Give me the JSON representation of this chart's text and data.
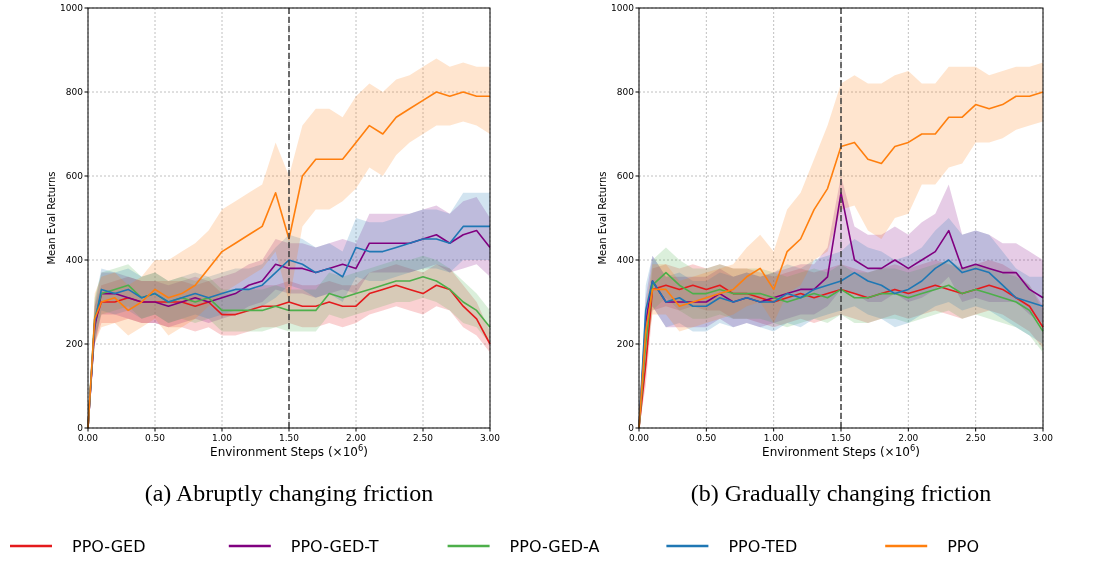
{
  "chart_data": [
    {
      "type": "line",
      "title": "(a) Abruptly changing friction",
      "xlabel": "Environment Steps (×10$^{6}$)",
      "ylabel": "Mean Eval Returns",
      "x": [
        0,
        0.05,
        0.1,
        0.2,
        0.3,
        0.4,
        0.5,
        0.6,
        0.7,
        0.8,
        0.9,
        1.0,
        1.1,
        1.2,
        1.3,
        1.4,
        1.5,
        1.6,
        1.7,
        1.8,
        1.9,
        2.0,
        2.1,
        2.2,
        2.3,
        2.4,
        2.5,
        2.6,
        2.7,
        2.8,
        2.9,
        3.0
      ],
      "xlim": [
        0,
        3
      ],
      "xticks": [
        {
          "value": 0,
          "label": "0.00"
        },
        {
          "value": 0.5,
          "label": "0.50"
        },
        {
          "value": 1,
          "label": "1.00"
        },
        {
          "value": 1.5,
          "label": "1.50"
        },
        {
          "value": 2,
          "label": "2.00"
        },
        {
          "value": 2.5,
          "label": "2.50"
        },
        {
          "value": 3,
          "label": "3.00"
        }
      ],
      "ylim": [
        0,
        1000
      ],
      "yticks": [
        0,
        200,
        400,
        600,
        800,
        1000
      ],
      "grid": true,
      "legend": "bottom",
      "line_style": "solid",
      "ref_lines": [
        {
          "axis": "x",
          "value": 1.5,
          "color": "#404040",
          "line_style": "dashed"
        }
      ],
      "series": [
        {
          "name": "PPO-GED",
          "color": "#e41a1c",
          "values": [
            0,
            250,
            300,
            300,
            310,
            300,
            300,
            300,
            300,
            290,
            300,
            270,
            270,
            280,
            290,
            290,
            300,
            290,
            290,
            300,
            290,
            290,
            320,
            330,
            340,
            330,
            320,
            340,
            330,
            290,
            260,
            200
          ],
          "lower": [
            0,
            200,
            250,
            250,
            260,
            250,
            250,
            240,
            240,
            230,
            240,
            220,
            220,
            230,
            240,
            240,
            250,
            240,
            240,
            250,
            240,
            250,
            270,
            280,
            290,
            280,
            270,
            290,
            280,
            240,
            220,
            180
          ],
          "upper": [
            0,
            290,
            340,
            350,
            360,
            350,
            350,
            350,
            350,
            340,
            350,
            320,
            320,
            330,
            340,
            340,
            350,
            340,
            340,
            350,
            340,
            340,
            370,
            380,
            390,
            380,
            370,
            390,
            380,
            340,
            300,
            230
          ]
        },
        {
          "name": "PPO-GED-T",
          "color": "#800080",
          "values": [
            0,
            240,
            320,
            320,
            310,
            300,
            300,
            290,
            300,
            310,
            300,
            310,
            320,
            340,
            350,
            390,
            380,
            380,
            370,
            380,
            390,
            380,
            440,
            440,
            440,
            440,
            450,
            460,
            440,
            460,
            470,
            430
          ],
          "lower": [
            0,
            200,
            270,
            270,
            260,
            250,
            250,
            240,
            250,
            260,
            250,
            260,
            270,
            290,
            300,
            330,
            320,
            320,
            310,
            320,
            330,
            320,
            370,
            370,
            370,
            370,
            380,
            390,
            370,
            380,
            390,
            360
          ],
          "upper": [
            0,
            290,
            370,
            370,
            360,
            350,
            350,
            340,
            350,
            360,
            350,
            360,
            370,
            390,
            400,
            450,
            440,
            440,
            430,
            440,
            450,
            440,
            510,
            510,
            510,
            510,
            520,
            530,
            510,
            540,
            550,
            500
          ]
        },
        {
          "name": "PPO-GED-A",
          "color": "#4daf4a",
          "values": [
            0,
            260,
            320,
            330,
            340,
            310,
            320,
            300,
            310,
            300,
            310,
            280,
            280,
            280,
            280,
            290,
            280,
            280,
            280,
            320,
            310,
            320,
            330,
            340,
            350,
            350,
            360,
            350,
            330,
            300,
            280,
            240
          ],
          "lower": [
            0,
            210,
            270,
            280,
            290,
            260,
            270,
            250,
            260,
            250,
            260,
            230,
            230,
            230,
            230,
            240,
            230,
            230,
            230,
            270,
            260,
            270,
            280,
            290,
            300,
            300,
            310,
            300,
            280,
            250,
            240,
            200
          ],
          "upper": [
            0,
            310,
            370,
            380,
            390,
            360,
            370,
            350,
            360,
            350,
            360,
            330,
            330,
            330,
            330,
            340,
            330,
            330,
            330,
            370,
            360,
            370,
            380,
            390,
            400,
            400,
            410,
            400,
            380,
            350,
            320,
            280
          ]
        },
        {
          "name": "PPO-TED",
          "color": "#1f77b4",
          "values": [
            0,
            250,
            330,
            320,
            330,
            310,
            320,
            300,
            310,
            320,
            310,
            320,
            330,
            330,
            340,
            370,
            400,
            390,
            370,
            380,
            360,
            430,
            420,
            420,
            430,
            440,
            450,
            450,
            440,
            480,
            480,
            480
          ],
          "lower": [
            0,
            200,
            280,
            270,
            280,
            260,
            270,
            250,
            260,
            270,
            260,
            270,
            280,
            280,
            290,
            310,
            340,
            330,
            310,
            320,
            300,
            360,
            350,
            350,
            360,
            370,
            380,
            380,
            370,
            400,
            400,
            400
          ],
          "upper": [
            0,
            300,
            380,
            370,
            380,
            360,
            370,
            350,
            360,
            370,
            360,
            370,
            380,
            380,
            390,
            430,
            460,
            450,
            430,
            440,
            420,
            500,
            490,
            490,
            500,
            510,
            520,
            520,
            510,
            560,
            560,
            560
          ]
        },
        {
          "name": "PPO",
          "color": "#ff7f0e",
          "values": [
            0,
            260,
            300,
            310,
            280,
            300,
            330,
            310,
            320,
            340,
            380,
            420,
            440,
            460,
            480,
            560,
            450,
            600,
            640,
            640,
            640,
            680,
            720,
            700,
            740,
            760,
            780,
            800,
            790,
            800,
            790,
            790
          ],
          "lower": [
            0,
            200,
            240,
            250,
            220,
            240,
            260,
            220,
            240,
            260,
            290,
            320,
            340,
            360,
            380,
            420,
            300,
            480,
            520,
            520,
            540,
            570,
            620,
            600,
            650,
            680,
            700,
            720,
            720,
            730,
            720,
            700
          ],
          "upper": [
            0,
            320,
            360,
            370,
            340,
            360,
            400,
            400,
            420,
            440,
            470,
            520,
            540,
            560,
            580,
            680,
            600,
            720,
            760,
            760,
            740,
            790,
            820,
            800,
            830,
            840,
            860,
            880,
            860,
            870,
            860,
            860
          ]
        }
      ]
    },
    {
      "type": "line",
      "title": "(b) Gradually changing friction",
      "xlabel": "Environment Steps (×10$^{6}$)",
      "ylabel": "Mean Eval Returns",
      "x": [
        0,
        0.05,
        0.1,
        0.2,
        0.3,
        0.4,
        0.5,
        0.6,
        0.7,
        0.8,
        0.9,
        1.0,
        1.1,
        1.2,
        1.3,
        1.4,
        1.5,
        1.6,
        1.7,
        1.8,
        1.9,
        2.0,
        2.1,
        2.2,
        2.3,
        2.4,
        2.5,
        2.6,
        2.7,
        2.8,
        2.9,
        3.0
      ],
      "xlim": [
        0,
        3
      ],
      "xticks": [
        {
          "value": 0,
          "label": "0.00"
        },
        {
          "value": 0.5,
          "label": "0.50"
        },
        {
          "value": 1,
          "label": "1.00"
        },
        {
          "value": 1.5,
          "label": "1.50"
        },
        {
          "value": 2,
          "label": "2.00"
        },
        {
          "value": 2.5,
          "label": "2.50"
        },
        {
          "value": 3,
          "label": "3.00"
        }
      ],
      "ylim": [
        0,
        1000
      ],
      "yticks": [
        0,
        200,
        400,
        600,
        800,
        1000
      ],
      "grid": true,
      "line_style": "solid",
      "ref_lines": [
        {
          "axis": "x",
          "value": 1.5,
          "color": "#404040",
          "line_style": "dashed"
        }
      ],
      "series": [
        {
          "color": "#e41a1c",
          "values": [
            0,
            150,
            330,
            340,
            330,
            340,
            330,
            340,
            320,
            320,
            310,
            300,
            310,
            320,
            310,
            320,
            330,
            320,
            310,
            320,
            330,
            320,
            330,
            340,
            330,
            320,
            330,
            340,
            330,
            310,
            290,
            240
          ],
          "lower": [
            0,
            100,
            280,
            290,
            280,
            290,
            280,
            280,
            260,
            260,
            250,
            240,
            250,
            260,
            250,
            260,
            270,
            260,
            250,
            260,
            270,
            260,
            270,
            280,
            270,
            260,
            270,
            280,
            270,
            250,
            230,
            190
          ],
          "upper": [
            0,
            200,
            380,
            390,
            380,
            390,
            380,
            390,
            380,
            380,
            370,
            360,
            370,
            380,
            370,
            380,
            390,
            380,
            370,
            380,
            390,
            380,
            390,
            400,
            390,
            380,
            390,
            400,
            390,
            370,
            340,
            290
          ]
        },
        {
          "color": "#800080",
          "values": [
            0,
            250,
            350,
            300,
            300,
            300,
            300,
            320,
            300,
            310,
            300,
            310,
            320,
            330,
            330,
            360,
            560,
            400,
            380,
            380,
            400,
            380,
            400,
            420,
            470,
            380,
            390,
            380,
            370,
            370,
            330,
            310
          ],
          "lower": [
            0,
            190,
            290,
            240,
            240,
            240,
            240,
            260,
            240,
            250,
            240,
            250,
            260,
            270,
            270,
            290,
            330,
            320,
            300,
            300,
            320,
            300,
            310,
            330,
            360,
            300,
            310,
            300,
            300,
            300,
            270,
            250
          ],
          "upper": [
            0,
            310,
            410,
            360,
            360,
            360,
            360,
            380,
            360,
            370,
            360,
            370,
            380,
            390,
            390,
            430,
            600,
            480,
            460,
            460,
            480,
            460,
            490,
            510,
            580,
            460,
            470,
            460,
            440,
            440,
            420,
            400
          ]
        },
        {
          "color": "#4daf4a",
          "values": [
            0,
            200,
            340,
            370,
            340,
            320,
            320,
            330,
            320,
            320,
            320,
            310,
            300,
            310,
            320,
            310,
            330,
            310,
            310,
            320,
            320,
            310,
            320,
            330,
            340,
            320,
            330,
            320,
            310,
            300,
            280,
            230
          ],
          "lower": [
            0,
            150,
            280,
            310,
            280,
            260,
            260,
            270,
            260,
            260,
            260,
            250,
            240,
            250,
            260,
            250,
            270,
            250,
            250,
            260,
            260,
            250,
            260,
            270,
            280,
            260,
            270,
            260,
            250,
            240,
            220,
            180
          ],
          "upper": [
            0,
            250,
            400,
            430,
            400,
            380,
            380,
            390,
            380,
            380,
            380,
            370,
            360,
            370,
            380,
            370,
            390,
            370,
            370,
            380,
            380,
            370,
            380,
            390,
            400,
            380,
            390,
            380,
            370,
            360,
            340,
            280
          ]
        },
        {
          "color": "#1f77b4",
          "values": [
            0,
            280,
            350,
            300,
            310,
            290,
            290,
            310,
            300,
            310,
            300,
            300,
            320,
            310,
            330,
            340,
            350,
            370,
            350,
            340,
            320,
            330,
            350,
            380,
            400,
            370,
            380,
            370,
            340,
            310,
            300,
            290
          ],
          "lower": [
            0,
            220,
            290,
            240,
            250,
            230,
            230,
            250,
            240,
            250,
            240,
            230,
            250,
            240,
            260,
            270,
            280,
            290,
            270,
            260,
            240,
            250,
            270,
            290,
            300,
            280,
            290,
            280,
            260,
            240,
            220,
            200
          ],
          "upper": [
            0,
            340,
            410,
            360,
            370,
            350,
            350,
            370,
            360,
            370,
            360,
            370,
            390,
            380,
            400,
            410,
            420,
            450,
            430,
            420,
            400,
            410,
            430,
            470,
            500,
            460,
            470,
            460,
            420,
            380,
            360,
            360
          ]
        },
        {
          "color": "#ff7f0e",
          "values": [
            0,
            230,
            330,
            330,
            290,
            300,
            310,
            320,
            330,
            360,
            380,
            330,
            420,
            450,
            520,
            570,
            670,
            680,
            640,
            630,
            670,
            680,
            700,
            700,
            740,
            740,
            770,
            760,
            770,
            790,
            790,
            800
          ],
          "lower": [
            0,
            180,
            270,
            270,
            230,
            240,
            250,
            260,
            270,
            290,
            300,
            250,
            320,
            340,
            400,
            420,
            520,
            530,
            470,
            450,
            500,
            510,
            580,
            580,
            620,
            630,
            680,
            680,
            690,
            710,
            720,
            730
          ],
          "upper": [
            0,
            290,
            390,
            390,
            350,
            360,
            370,
            380,
            390,
            430,
            460,
            420,
            520,
            560,
            640,
            720,
            820,
            840,
            820,
            820,
            840,
            850,
            820,
            820,
            860,
            860,
            860,
            840,
            850,
            860,
            860,
            870
          ]
        }
      ]
    }
  ]
}
